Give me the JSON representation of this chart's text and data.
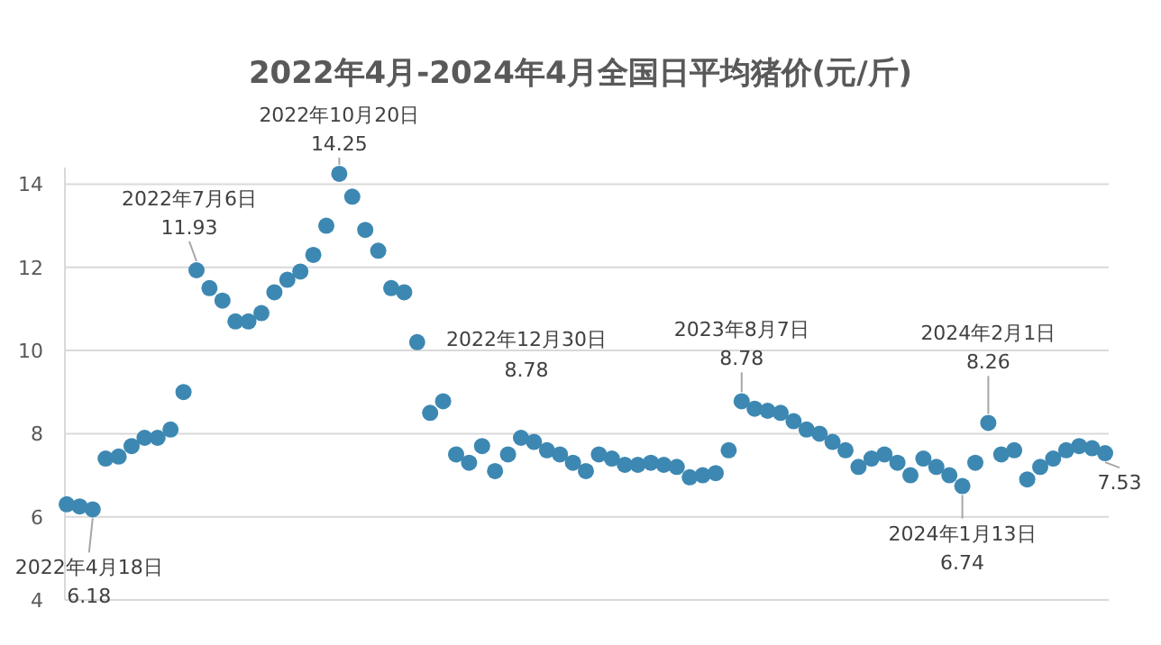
{
  "chart_data": {
    "type": "scatter",
    "title": "2022年4月-2024年4月全国日平均猪价(元/斤)",
    "marker": "circle",
    "grid": "y",
    "tick_labels": "y",
    "ylim": [
      4,
      14.4
    ],
    "yticks": [
      4,
      6,
      8,
      10,
      12,
      14
    ],
    "categories": [
      null,
      null,
      null,
      null,
      null,
      null,
      null,
      null,
      null,
      null,
      null,
      null,
      null,
      null,
      null,
      null,
      null,
      null,
      null,
      null,
      null,
      null,
      null,
      null,
      null,
      null,
      null,
      null,
      null,
      null,
      null,
      null,
      null,
      null,
      null,
      null,
      null,
      null,
      null,
      null,
      null,
      null,
      null,
      null,
      null,
      null,
      null,
      null,
      null,
      null,
      null,
      null,
      null,
      null,
      null,
      null,
      null,
      null,
      null,
      null,
      null,
      null,
      null,
      null,
      null,
      null,
      null,
      null,
      null,
      null,
      null,
      null,
      null,
      null,
      null,
      null,
      null,
      null,
      null,
      null,
      null
    ],
    "series": [
      {
        "color": "#3d88b2",
        "values": [
          6.3,
          6.25,
          6.18,
          7.4,
          7.45,
          7.7,
          7.9,
          7.9,
          8.1,
          9.0,
          11.93,
          11.5,
          11.2,
          10.7,
          10.7,
          10.9,
          11.4,
          11.7,
          11.9,
          12.3,
          13.0,
          14.25,
          13.7,
          12.9,
          12.4,
          11.5,
          11.4,
          10.2,
          8.5,
          8.78,
          7.5,
          7.3,
          7.7,
          7.1,
          7.5,
          7.9,
          7.8,
          7.6,
          7.5,
          7.3,
          7.1,
          7.5,
          7.4,
          7.25,
          7.25,
          7.3,
          7.25,
          7.2,
          6.95,
          7.0,
          7.05,
          7.6,
          8.78,
          8.6,
          8.55,
          8.5,
          8.3,
          8.1,
          8.0,
          7.8,
          7.6,
          7.2,
          7.4,
          7.5,
          7.3,
          7.0,
          7.4,
          7.2,
          7.0,
          6.74,
          7.3,
          8.26,
          7.5,
          7.6,
          6.9,
          7.2,
          7.4,
          7.6,
          7.7,
          7.65,
          7.53
        ]
      }
    ],
    "annotations": [
      {
        "text": "2022年4月18日\n6.18",
        "y": 6.18
      },
      {
        "text": "2022年7月6日\n11.93",
        "y": 11.93
      },
      {
        "text": "2022年10月20日\n14.25",
        "y": 14.25
      },
      "2022年12月30日\n8.78",
      {
        "text": "2023年8月7日\n8.78",
        "y": 8.78
      },
      {
        "text": "2024年1月13日\n6.74",
        "y": 6.74
      },
      {
        "text": "2024年2月1日\n8.26",
        "y": 8.26
      },
      {
        "text": "7.53",
        "y": 7.53
      }
    ]
  }
}
